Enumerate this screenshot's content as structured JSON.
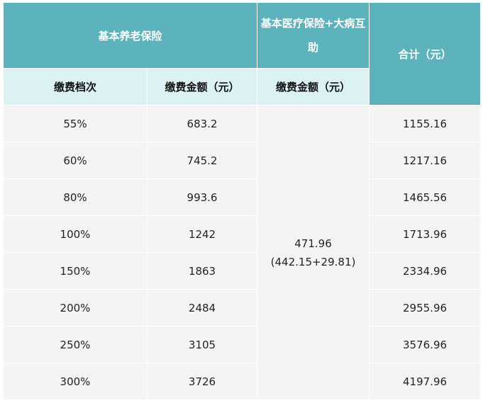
{
  "header": {
    "pension": "基本养老保险",
    "medical": "基本医疗保险+大病互助",
    "total": "合计（元）",
    "level": "缴费档次",
    "pension_amount": "缴费金额（元）",
    "medical_amount": "缴费金额（元）"
  },
  "medical_value": {
    "amount": "471.96",
    "breakdown": "(442.15+29.81)"
  },
  "rows": [
    {
      "level": "55%",
      "pension": "683.2",
      "total": "1155.16"
    },
    {
      "level": "60%",
      "pension": "745.2",
      "total": "1217.16"
    },
    {
      "level": "80%",
      "pension": "993.6",
      "total": "1465.56"
    },
    {
      "level": "100%",
      "pension": "1242",
      "total": "1713.96"
    },
    {
      "level": "150%",
      "pension": "1863",
      "total": "2334.96"
    },
    {
      "level": "200%",
      "pension": "2484",
      "total": "2955.96"
    },
    {
      "level": "250%",
      "pension": "3105",
      "total": "3576.96"
    },
    {
      "level": "300%",
      "pension": "3726",
      "total": "4197.96"
    }
  ],
  "colors": {
    "header_dark": "#5cb3bb",
    "header_light": "#dbf1f4",
    "body": "#f4f4f4"
  }
}
